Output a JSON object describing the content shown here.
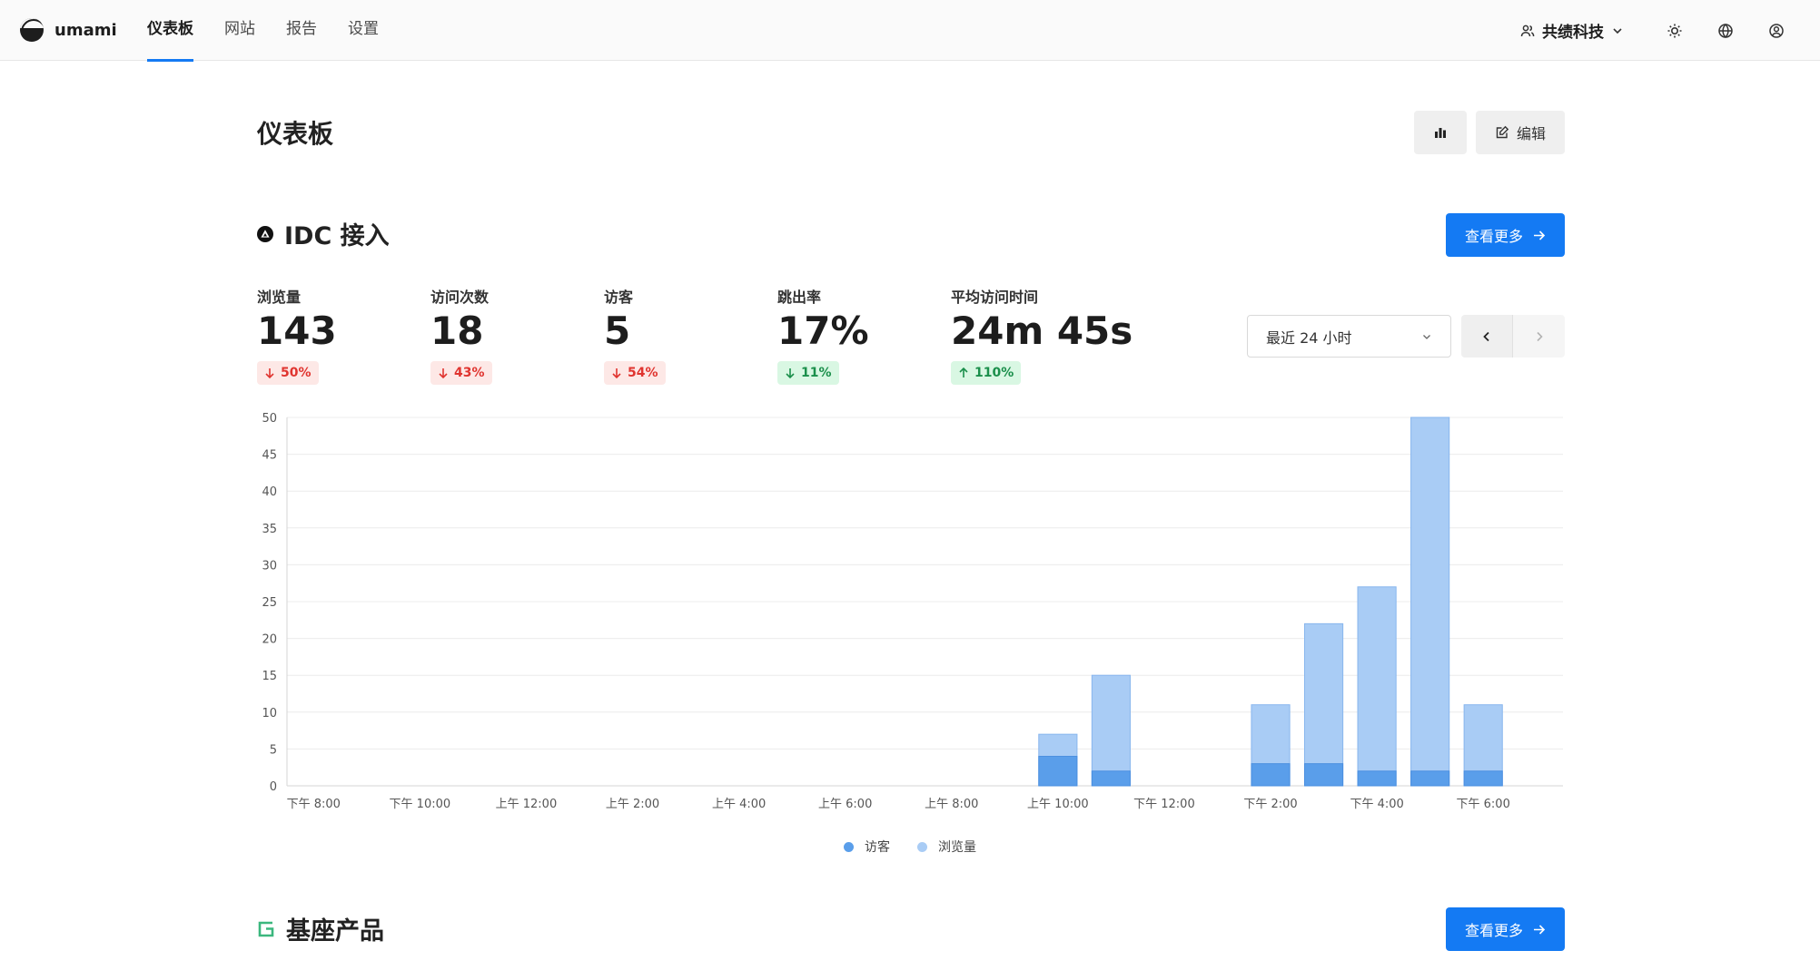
{
  "nav": {
    "brand": "umami",
    "items": [
      {
        "label": "仪表板",
        "active": true
      },
      {
        "label": "网站",
        "active": false
      },
      {
        "label": "报告",
        "active": false
      },
      {
        "label": "设置",
        "active": false
      }
    ],
    "team": "共绩科技",
    "icons": [
      "user-group-icon",
      "sun-icon",
      "globe-icon",
      "user-circle-icon"
    ]
  },
  "page": {
    "title": "仪表板",
    "edit_label": "编辑"
  },
  "sections": [
    {
      "title": "IDC 接入",
      "more_label": "查看更多"
    },
    {
      "title": "基座产品",
      "more_label": "查看更多"
    }
  ],
  "metrics": [
    {
      "label": "浏览量",
      "value": "143",
      "change": "50%",
      "direction": "down"
    },
    {
      "label": "访问次数",
      "value": "18",
      "change": "43%",
      "direction": "down"
    },
    {
      "label": "访客",
      "value": "5",
      "change": "54%",
      "direction": "down"
    },
    {
      "label": "跳出率",
      "value": "17%",
      "change": "11%",
      "direction": "down-good"
    },
    {
      "label": "平均访问时间",
      "value": "24m 45s",
      "change": "110%",
      "direction": "up"
    }
  ],
  "range": {
    "label": "最近 24 小时"
  },
  "colors": {
    "accent": "#147af3",
    "visitors": "#5a9eea",
    "pageviews": "#a9ccf5",
    "down": "#e0342f",
    "up": "#1b8f4b"
  },
  "chart_data": {
    "type": "bar",
    "stacked": true,
    "ylim": [
      0,
      50
    ],
    "yticks": [
      0,
      5,
      10,
      15,
      20,
      25,
      30,
      35,
      40,
      45,
      50
    ],
    "categories": [
      "下午 8:00",
      "下午 9:00",
      "下午 10:00",
      "下午 11:00",
      "上午 12:00",
      "上午 1:00",
      "上午 2:00",
      "上午 3:00",
      "上午 4:00",
      "上午 5:00",
      "上午 6:00",
      "上午 7:00",
      "上午 8:00",
      "上午 9:00",
      "上午 10:00",
      "上午 11:00",
      "下午 12:00",
      "下午 1:00",
      "下午 2:00",
      "下午 3:00",
      "下午 4:00",
      "下午 5:00",
      "下午 6:00",
      "下午 7:00"
    ],
    "tick_labels": [
      "下午 8:00",
      "下午 10:00",
      "上午 12:00",
      "上午 2:00",
      "上午 4:00",
      "上午 6:00",
      "上午 8:00",
      "上午 10:00",
      "下午 12:00",
      "下午 2:00",
      "下午 4:00",
      "下午 6:00"
    ],
    "series": [
      {
        "name": "访客",
        "values": [
          0,
          0,
          0,
          0,
          0,
          0,
          0,
          0,
          0,
          0,
          0,
          0,
          0,
          0,
          4,
          2,
          0,
          0,
          3,
          3,
          2,
          2,
          2,
          0
        ]
      },
      {
        "name": "浏览量",
        "values": [
          0,
          0,
          0,
          0,
          0,
          0,
          0,
          0,
          0,
          0,
          0,
          0,
          0,
          0,
          7,
          15,
          0,
          0,
          11,
          22,
          27,
          50,
          11,
          0
        ]
      }
    ],
    "grid": true,
    "legend": "bottom"
  }
}
